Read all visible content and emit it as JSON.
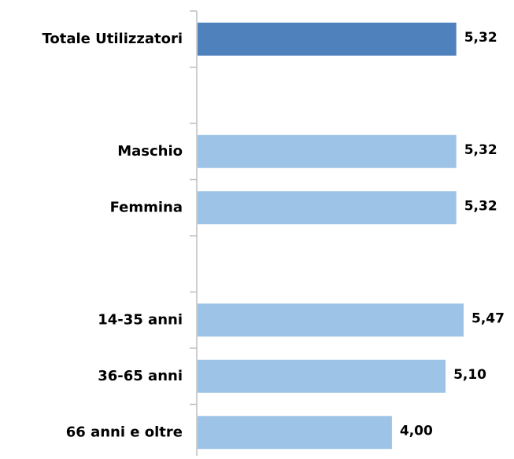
{
  "chart_data": {
    "type": "bar",
    "orientation": "horizontal",
    "categories": [
      "Totale Utilizzatori",
      null,
      "Maschio",
      "Femmina",
      null,
      "14-35 anni",
      "36-65 anni",
      "66 anni e oltre"
    ],
    "values": [
      5.32,
      null,
      5.32,
      5.32,
      null,
      5.47,
      5.1,
      4.0
    ],
    "value_labels": [
      "5,32",
      null,
      "5,32",
      "5,32",
      null,
      "5,47",
      "5,10",
      "4,00"
    ],
    "colors": [
      "#4f81bd",
      null,
      "#9dc3e6",
      "#9dc3e6",
      null,
      "#9dc3e6",
      "#9dc3e6",
      "#9dc3e6"
    ]
  }
}
